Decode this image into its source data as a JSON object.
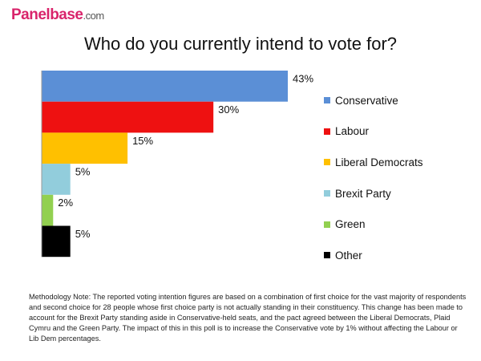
{
  "logo": {
    "brand": "Panelbase",
    "domain": ".com"
  },
  "chart_data": {
    "type": "bar",
    "orientation": "horizontal",
    "title": "Who do you currently intend to vote for?",
    "categories": [
      "Conservative",
      "Labour",
      "Liberal Democrats",
      "Brexit Party",
      "Green",
      "Other"
    ],
    "values": [
      43,
      30,
      15,
      5,
      2,
      5
    ],
    "data_labels": [
      "43%",
      "30%",
      "15%",
      "5%",
      "2%",
      "5%"
    ],
    "colors": [
      "#5b8fd6",
      "#ee1111",
      "#ffc000",
      "#92cddc",
      "#92d050",
      "#000000"
    ],
    "xlim": [
      0,
      43
    ],
    "grid": false,
    "legend": "right"
  },
  "note": "Methodology Note: The reported voting intention figures are based on a combination of first choice for the vast majority of respondents and second choice for 28 people whose first choice party is not actually standing in their constituency. This change has been made to account for the Brexit Party standing aside in Conservative-held seats, and the pact agreed between the Liberal Democrats, Plaid Cymru and the Green Party. The impact of this in this poll is to increase the Conservative vote by 1% without affecting the Labour or Lib Dem percentages."
}
